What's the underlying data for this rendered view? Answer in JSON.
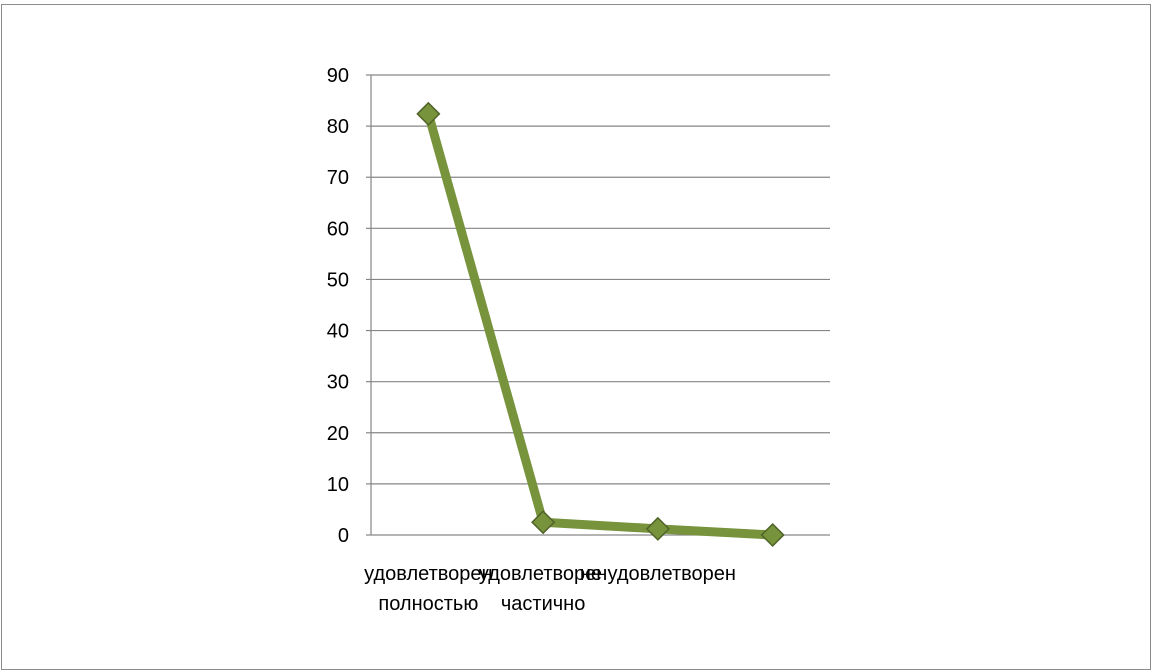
{
  "chart_data": {
    "type": "line",
    "title": "",
    "xlabel": "",
    "ylabel": "",
    "categories": [
      [
        "удовлетворен",
        "полностью"
      ],
      [
        "удовлетворен",
        "частично"
      ],
      [
        "не удовлетворен"
      ],
      [
        ""
      ]
    ],
    "series": [
      {
        "values": [
          82.4,
          2.5,
          1.2,
          0
        ]
      }
    ],
    "ylim": [
      0,
      90
    ],
    "yticks": [
      0,
      10,
      20,
      30,
      40,
      50,
      60,
      70,
      80,
      90
    ],
    "grid": true,
    "legend": "none",
    "colors": {
      "line": "#77933c",
      "marker": "#77933c",
      "marker_stroke": "#4f6228",
      "grid": "#868686",
      "axis": "#868686",
      "frame": "#8c8c8c"
    }
  }
}
